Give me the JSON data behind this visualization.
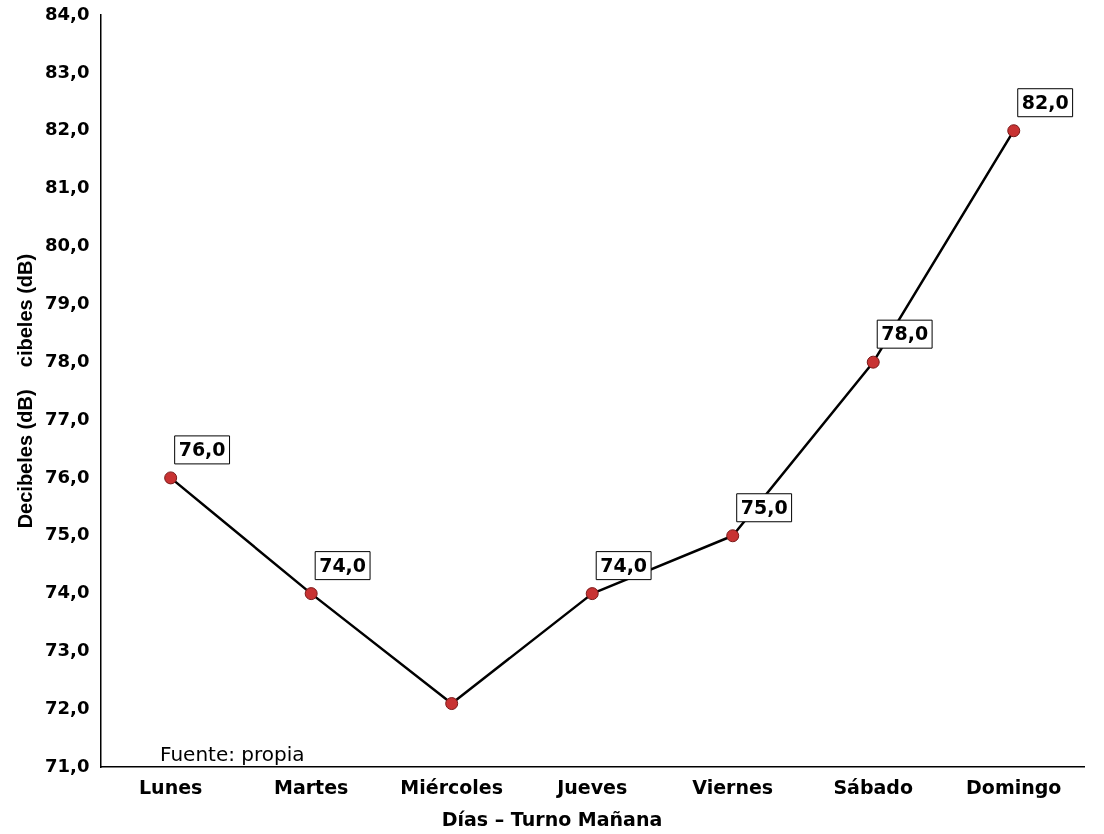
{
  "chart_data": {
    "type": "line",
    "xlabel": "Días – Turno Mañana",
    "ylabel": "Decibeles (dB)    cibeles (dB)",
    "categories": [
      "Lunes",
      "Martes",
      "Miércoles",
      "Jueves",
      "Viernes",
      "Sábado",
      "Domingo"
    ],
    "series": [
      {
        "color": "#c83232",
        "values": [
          76,
          74,
          72.1,
          74,
          75,
          78,
          82
        ],
        "value_labels": [
          "76,0",
          "74,0",
          null,
          "74,0",
          "75,0",
          "78,0",
          "82,0"
        ]
      }
    ],
    "ylim": [
      71,
      84
    ],
    "yticks": [
      {
        "value": 71,
        "label": "71,0"
      },
      {
        "value": 72,
        "label": "72,0"
      },
      {
        "value": 73,
        "label": "73,0"
      },
      {
        "value": 74,
        "label": "74,0"
      },
      {
        "value": 75,
        "label": "75,0"
      },
      {
        "value": 76,
        "label": "76,0"
      },
      {
        "value": 77,
        "label": "77,0"
      },
      {
        "value": 78,
        "label": "78,0"
      },
      {
        "value": 79,
        "label": "79,0"
      },
      {
        "value": 80,
        "label": "80,0"
      },
      {
        "value": 81,
        "label": "81,0"
      },
      {
        "value": 82,
        "label": "82,0"
      },
      {
        "value": 83,
        "label": "83,0"
      },
      {
        "value": 84,
        "label": "84,0"
      }
    ],
    "grid": false,
    "legend": false,
    "marker": "circle",
    "line_style": "solid",
    "annotations": [
      "Fuente: propia"
    ]
  }
}
